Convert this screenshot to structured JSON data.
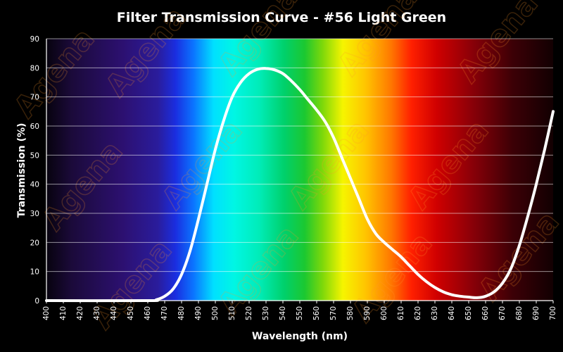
{
  "watermark": "Agena",
  "chart_data": {
    "type": "line",
    "title": "Filter Transmission Curve - #56 Light Green",
    "xlabel": "Wavelength (nm)",
    "ylabel": "Transmission (%)",
    "xlim": [
      400,
      700
    ],
    "ylim": [
      0,
      90
    ],
    "grid": true,
    "background": "visible-spectrum gradient",
    "x_ticks": [
      400,
      410,
      420,
      430,
      440,
      450,
      460,
      470,
      480,
      490,
      500,
      510,
      520,
      530,
      540,
      550,
      560,
      570,
      580,
      590,
      600,
      610,
      620,
      630,
      640,
      650,
      660,
      670,
      680,
      690,
      700
    ],
    "x_tick_labels": [
      "400",
      "410",
      "420",
      "430",
      "440",
      "450",
      "460",
      "470",
      "480",
      "490",
      "500",
      "510",
      "520",
      "530",
      "540",
      "550",
      "560",
      "570",
      "580",
      "590",
      "600",
      "610",
      "620",
      "630",
      "640",
      "650",
      "660",
      "670",
      "680",
      "690",
      "700"
    ],
    "y_ticks": [
      0,
      10,
      20,
      30,
      40,
      50,
      60,
      70,
      80,
      90
    ],
    "y_tick_labels": [
      "0",
      "10",
      "20",
      "30",
      "40",
      "50",
      "60",
      "70",
      "80",
      "90"
    ],
    "series": [
      {
        "name": "#56 Light Green",
        "color": "#ffffff",
        "x": [
          400,
          460,
          465,
          470,
          475,
          480,
          485,
          490,
          495,
          500,
          505,
          510,
          515,
          520,
          525,
          530,
          535,
          540,
          545,
          550,
          555,
          560,
          565,
          570,
          575,
          580,
          585,
          590,
          595,
          600,
          605,
          610,
          615,
          620,
          625,
          630,
          635,
          640,
          645,
          650,
          655,
          660,
          665,
          670,
          675,
          680,
          685,
          690,
          695,
          700
        ],
        "y": [
          0,
          0,
          0.3,
          1.5,
          4,
          9,
          17,
          28,
          40,
          52,
          62,
          70,
          75,
          78,
          79.5,
          79.8,
          79.3,
          78,
          75.5,
          72.5,
          69,
          65.5,
          61.5,
          56,
          49,
          42,
          35,
          28,
          23,
          20,
          17.5,
          15,
          12,
          9,
          6.5,
          4.5,
          3,
          2,
          1.5,
          1.2,
          1,
          1.5,
          3,
          6,
          11,
          19,
          29,
          40,
          52,
          65
        ]
      }
    ]
  }
}
